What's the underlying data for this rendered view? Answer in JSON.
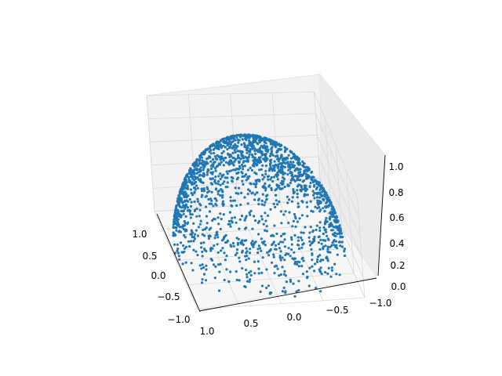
{
  "chart_data": {
    "type": "scatter",
    "projection": "3d",
    "title": "",
    "xlabel": "",
    "ylabel": "",
    "zlabel": "",
    "xlim": [
      -1.0,
      1.0
    ],
    "ylim": [
      -1.0,
      1.0
    ],
    "zlim": [
      0.0,
      1.0
    ],
    "grid": true,
    "legend": "none",
    "x_tick_labels": [
      "1.0",
      "0.5",
      "0.0",
      "−0.5",
      "−1.0"
    ],
    "y_tick_labels": [
      "1.0",
      "0.5",
      "0.0",
      "−0.5",
      "−1.0"
    ],
    "z_tick_labels": [
      "0.0",
      "0.2",
      "0.4",
      "0.6",
      "0.8",
      "1.0"
    ],
    "series": [
      {
        "marker_color": "#1f77b4",
        "description_of_distribution": "points on the upper unit hemisphere (z = sqrt(1 - x^2 - y^2)), denser along the rim and in two lobes",
        "sample_points": [
          [
            0.0,
            0.0,
            1.0
          ],
          [
            0.6,
            0.0,
            0.8
          ],
          [
            -0.6,
            0.0,
            0.8
          ],
          [
            0.0,
            0.6,
            0.8
          ],
          [
            0.0,
            -0.6,
            0.8
          ],
          [
            0.9,
            0.3,
            0.3
          ],
          [
            -0.9,
            -0.3,
            0.3
          ],
          [
            0.3,
            -0.9,
            0.3
          ],
          [
            -0.3,
            0.9,
            0.3
          ],
          [
            0.7,
            0.7,
            0.14
          ],
          [
            -0.7,
            -0.7,
            0.14
          ],
          [
            0.7,
            -0.7,
            0.14
          ],
          [
            -0.7,
            0.7,
            0.14
          ],
          [
            0.5,
            0.5,
            0.71
          ],
          [
            -0.5,
            0.5,
            0.71
          ],
          [
            0.5,
            -0.5,
            0.71
          ],
          [
            -0.5,
            -0.5,
            0.71
          ],
          [
            0.95,
            0.0,
            0.31
          ],
          [
            -0.95,
            0.0,
            0.31
          ],
          [
            0.0,
            0.95,
            0.31
          ]
        ]
      }
    ]
  }
}
